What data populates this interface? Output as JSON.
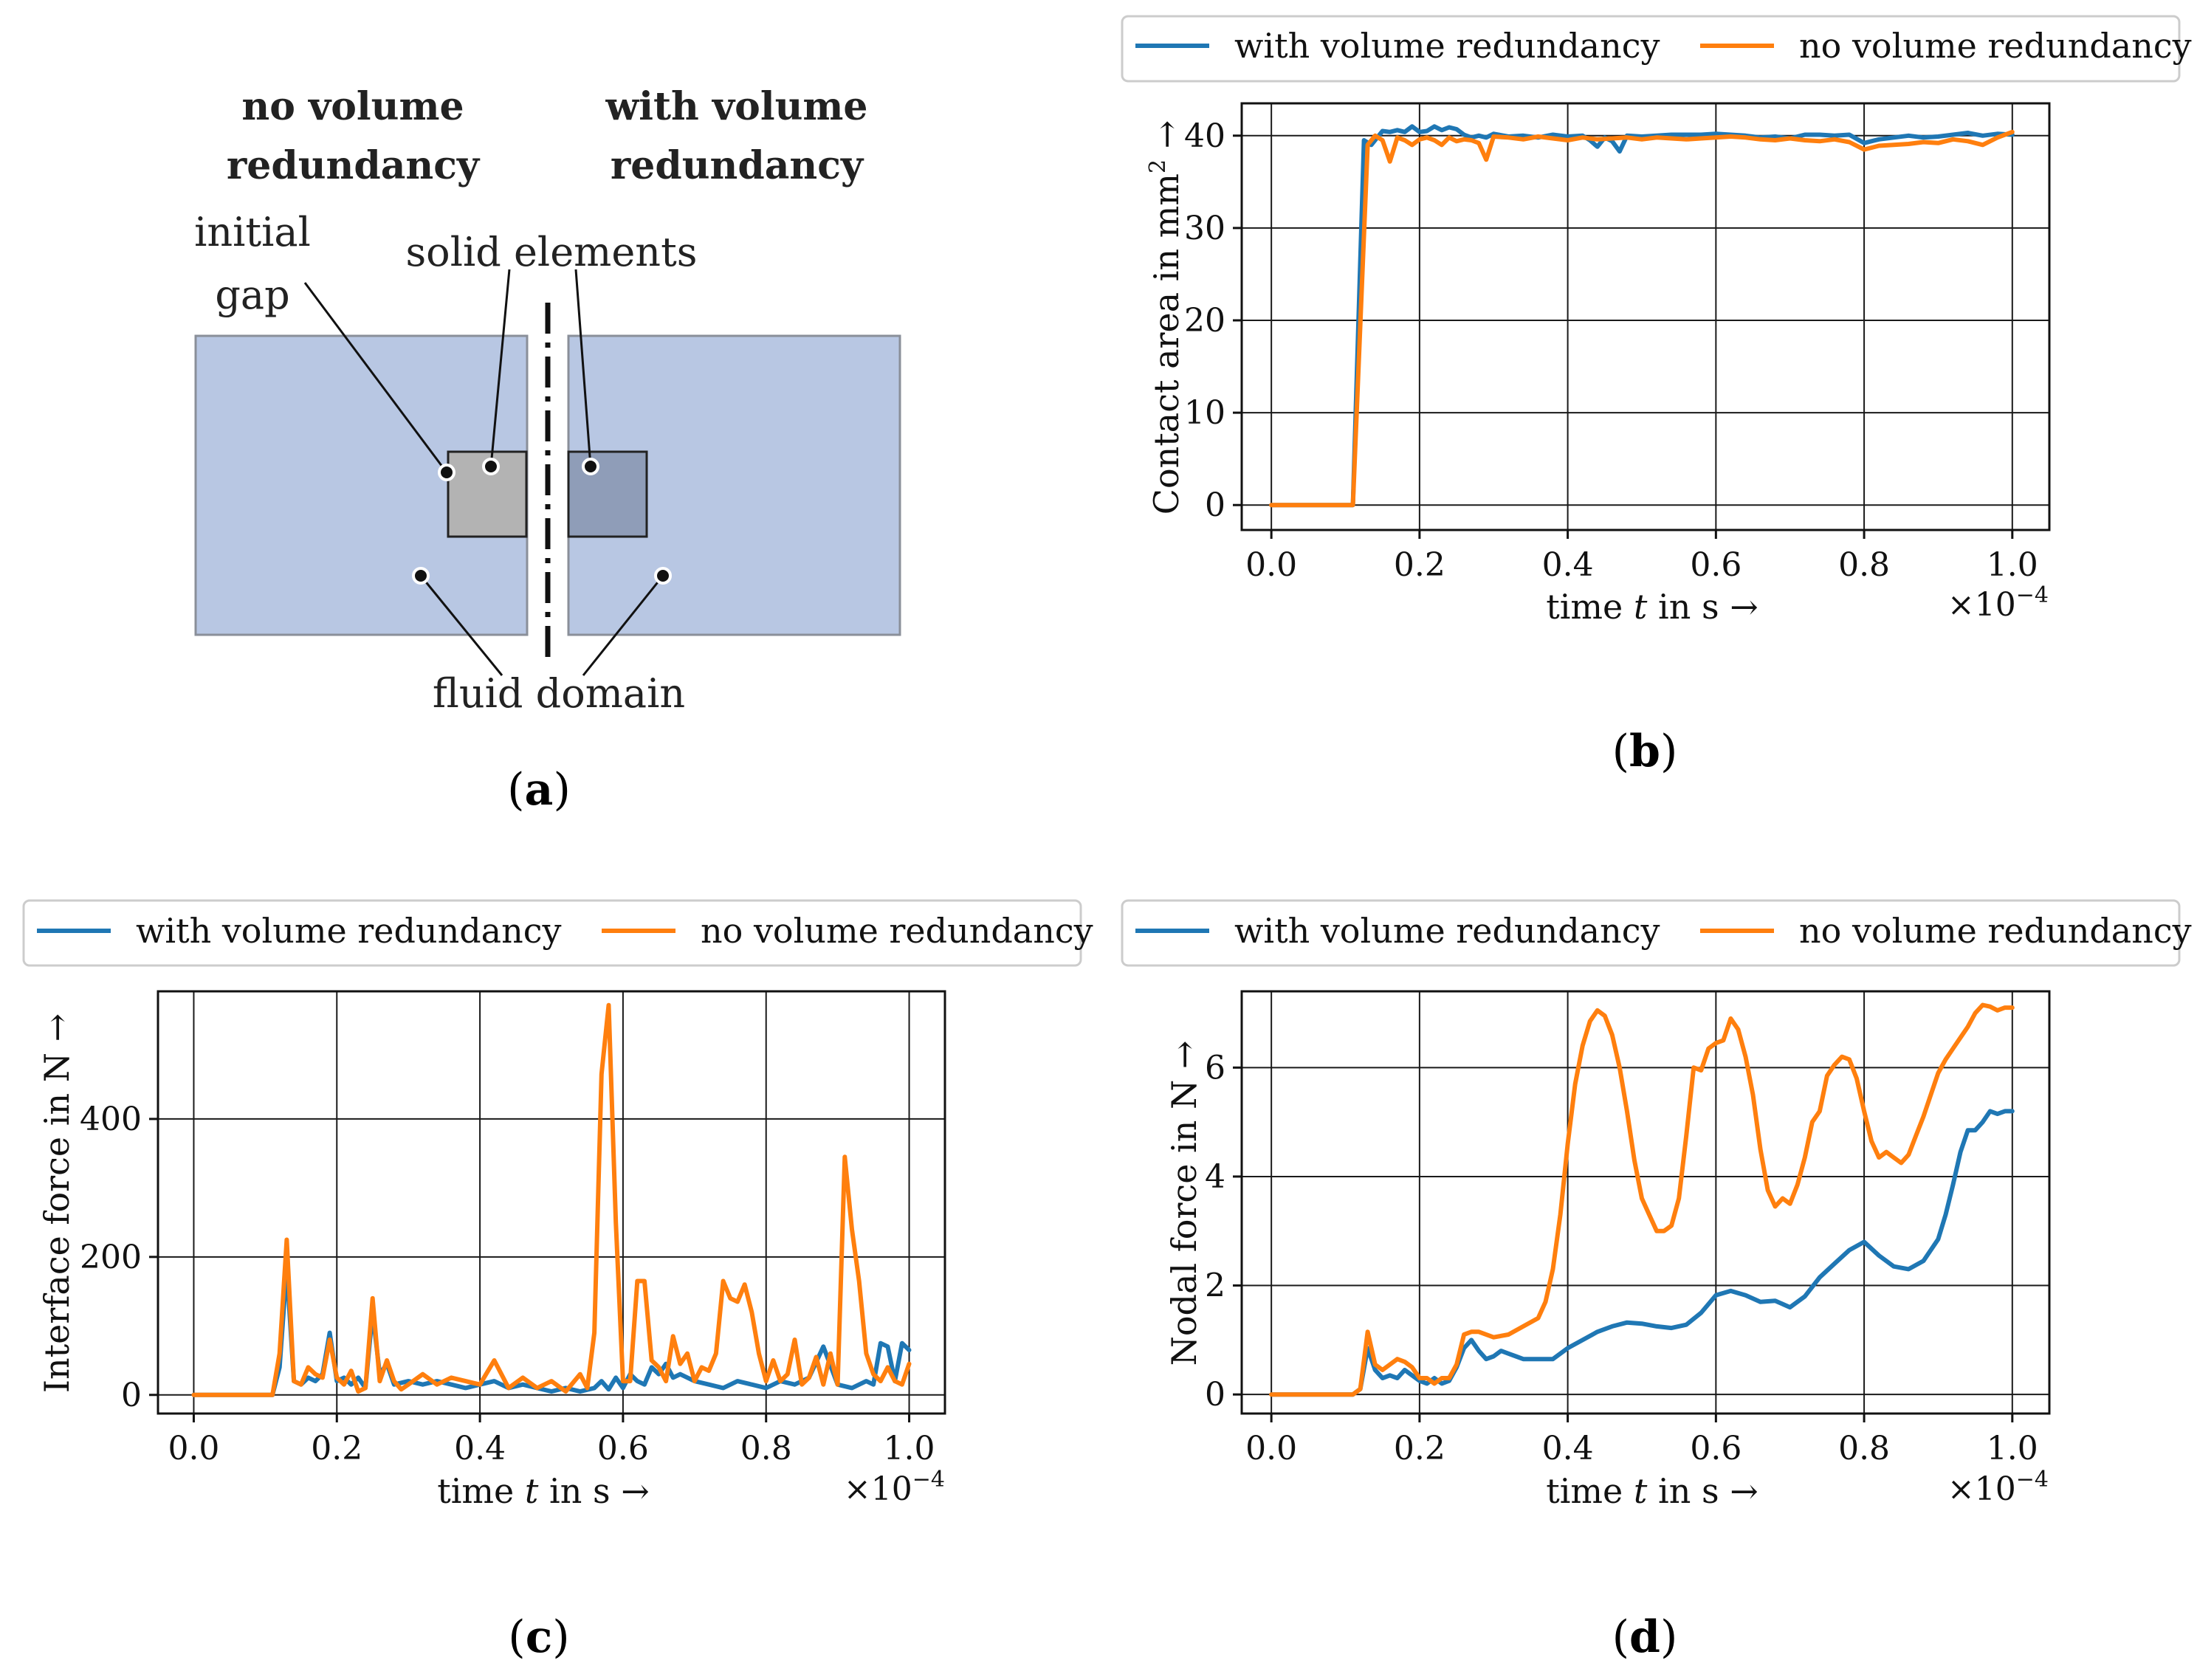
{
  "colors": {
    "with": "#1f77b4",
    "without": "#ff7f0e",
    "fluid_fill": "#b8c7e3",
    "fluid_stroke": "#8a8f99",
    "solid_left": "#b3b3b3",
    "solid_right": "#8f9db8",
    "grid": "#1a1a1a"
  },
  "panel_a": {
    "heading_left_line1": "no volume",
    "heading_left_line2": "redundancy",
    "heading_right_line1": "with volume",
    "heading_right_line2": "redundancy",
    "label_initial": "initial",
    "label_gap": "gap",
    "label_solid": "solid elements",
    "label_fluid": "fluid domain",
    "caption_open": "(",
    "caption_letter": "a",
    "caption_close": ")"
  },
  "chart_data": [
    {
      "id": "b",
      "type": "line",
      "caption": "b",
      "xlabel_prefix": "time ",
      "xlabel_var": "t",
      "xlabel_suffix": " in s →",
      "ylabel_pre": "Contact area in mm",
      "ylabel_sup": "2",
      "ylabel_post": " →",
      "x_multiplier_base": "×10",
      "x_multiplier_exp": "−4",
      "xlim": [
        -0.04,
        1.05
      ],
      "ylim": [
        -2.7,
        43.5
      ],
      "xticks": [
        0.0,
        0.2,
        0.4,
        0.6,
        0.8,
        1.0
      ],
      "xtick_labels": [
        "0.0",
        "0.2",
        "0.4",
        "0.6",
        "0.8",
        "1.0"
      ],
      "yticks": [
        0,
        10,
        20,
        30,
        40
      ],
      "ytick_labels": [
        "0",
        "10",
        "20",
        "30",
        "40"
      ],
      "grid": true,
      "legend": {
        "position": "top",
        "entries": [
          "with volume redundancy",
          "no volume redundancy"
        ]
      },
      "series": [
        {
          "name": "with volume redundancy",
          "color_key": "with",
          "x": [
            0.0,
            0.11,
            0.125,
            0.135,
            0.15,
            0.16,
            0.17,
            0.18,
            0.19,
            0.2,
            0.21,
            0.22,
            0.23,
            0.24,
            0.25,
            0.26,
            0.27,
            0.28,
            0.29,
            0.3,
            0.32,
            0.34,
            0.36,
            0.38,
            0.4,
            0.42,
            0.43,
            0.44,
            0.45,
            0.46,
            0.47,
            0.48,
            0.5,
            0.52,
            0.54,
            0.56,
            0.58,
            0.6,
            0.62,
            0.64,
            0.66,
            0.68,
            0.7,
            0.72,
            0.74,
            0.76,
            0.78,
            0.8,
            0.82,
            0.84,
            0.86,
            0.88,
            0.9,
            0.92,
            0.94,
            0.96,
            0.98,
            1.0
          ],
          "y": [
            0,
            0,
            39.5,
            39.0,
            40.5,
            40.4,
            40.6,
            40.4,
            41.0,
            40.4,
            40.5,
            41.0,
            40.6,
            40.9,
            40.7,
            40.1,
            39.8,
            40.0,
            39.8,
            40.2,
            39.9,
            40.0,
            39.8,
            40.1,
            39.9,
            40.0,
            39.5,
            38.8,
            39.8,
            39.4,
            38.3,
            40.0,
            39.9,
            40.0,
            40.1,
            40.1,
            40.1,
            40.2,
            40.1,
            40.0,
            39.8,
            39.9,
            39.7,
            40.1,
            40.1,
            40.0,
            40.1,
            39.2,
            39.6,
            39.8,
            40.0,
            39.8,
            39.9,
            40.1,
            40.3,
            40.0,
            40.2,
            40.1
          ]
        },
        {
          "name": "no volume redundancy",
          "color_key": "without",
          "x": [
            0.0,
            0.11,
            0.13,
            0.14,
            0.15,
            0.16,
            0.17,
            0.18,
            0.19,
            0.2,
            0.21,
            0.22,
            0.23,
            0.24,
            0.25,
            0.26,
            0.27,
            0.28,
            0.29,
            0.3,
            0.32,
            0.34,
            0.36,
            0.38,
            0.4,
            0.42,
            0.44,
            0.46,
            0.48,
            0.5,
            0.52,
            0.54,
            0.56,
            0.58,
            0.6,
            0.62,
            0.64,
            0.66,
            0.68,
            0.7,
            0.72,
            0.74,
            0.76,
            0.78,
            0.8,
            0.82,
            0.84,
            0.86,
            0.88,
            0.9,
            0.92,
            0.94,
            0.96,
            0.98,
            1.0
          ],
          "y": [
            0,
            0,
            39.0,
            40.0,
            39.5,
            37.2,
            39.8,
            39.5,
            39.0,
            39.6,
            39.8,
            39.5,
            39.0,
            39.8,
            39.4,
            39.6,
            39.5,
            39.2,
            37.4,
            39.9,
            39.8,
            39.6,
            39.9,
            39.7,
            39.5,
            39.8,
            39.6,
            39.7,
            39.8,
            39.6,
            39.8,
            39.7,
            39.6,
            39.7,
            39.8,
            39.9,
            39.8,
            39.6,
            39.5,
            39.7,
            39.5,
            39.4,
            39.6,
            39.3,
            38.5,
            38.9,
            39.0,
            39.1,
            39.3,
            39.2,
            39.6,
            39.4,
            39.0,
            39.8,
            40.4
          ]
        }
      ]
    },
    {
      "id": "c",
      "type": "line",
      "caption": "c",
      "xlabel_prefix": "time ",
      "xlabel_var": "t",
      "xlabel_suffix": " in s →",
      "ylabel_pre": "Interface force in N →",
      "ylabel_sup": "",
      "ylabel_post": "",
      "x_multiplier_base": "×10",
      "x_multiplier_exp": "−4",
      "xlim": [
        -0.05,
        1.05
      ],
      "ylim": [
        -27,
        585
      ],
      "xticks": [
        0.0,
        0.2,
        0.4,
        0.6,
        0.8,
        1.0
      ],
      "xtick_labels": [
        "0.0",
        "0.2",
        "0.4",
        "0.6",
        "0.8",
        "1.0"
      ],
      "yticks": [
        0,
        200,
        400
      ],
      "ytick_labels": [
        "0",
        "200",
        "400"
      ],
      "grid": true,
      "legend": {
        "position": "top",
        "entries": [
          "with volume redundancy",
          "no volume redundancy"
        ]
      },
      "series": [
        {
          "name": "with volume redundancy",
          "color_key": "with",
          "x": [
            0.0,
            0.11,
            0.12,
            0.13,
            0.14,
            0.15,
            0.16,
            0.17,
            0.18,
            0.19,
            0.2,
            0.21,
            0.22,
            0.23,
            0.24,
            0.25,
            0.26,
            0.27,
            0.28,
            0.3,
            0.32,
            0.34,
            0.36,
            0.38,
            0.4,
            0.42,
            0.44,
            0.46,
            0.48,
            0.5,
            0.52,
            0.54,
            0.56,
            0.57,
            0.58,
            0.59,
            0.6,
            0.61,
            0.62,
            0.63,
            0.64,
            0.65,
            0.66,
            0.67,
            0.68,
            0.7,
            0.72,
            0.74,
            0.76,
            0.78,
            0.8,
            0.82,
            0.84,
            0.86,
            0.88,
            0.9,
            0.92,
            0.94,
            0.95,
            0.96,
            0.97,
            0.98,
            0.99,
            1.0
          ],
          "y": [
            0,
            0,
            40,
            185,
            20,
            15,
            25,
            20,
            30,
            90,
            20,
            25,
            15,
            25,
            10,
            120,
            30,
            45,
            15,
            20,
            15,
            20,
            15,
            10,
            15,
            20,
            10,
            15,
            10,
            5,
            10,
            5,
            10,
            20,
            8,
            25,
            10,
            30,
            20,
            15,
            40,
            30,
            45,
            25,
            30,
            20,
            15,
            10,
            20,
            15,
            10,
            20,
            15,
            25,
            70,
            15,
            10,
            20,
            15,
            75,
            70,
            20,
            75,
            65
          ]
        },
        {
          "name": "no volume redundancy",
          "color_key": "without",
          "x": [
            0.0,
            0.11,
            0.12,
            0.13,
            0.14,
            0.15,
            0.16,
            0.17,
            0.18,
            0.19,
            0.2,
            0.21,
            0.22,
            0.23,
            0.24,
            0.25,
            0.26,
            0.27,
            0.28,
            0.29,
            0.3,
            0.32,
            0.34,
            0.36,
            0.38,
            0.4,
            0.42,
            0.44,
            0.46,
            0.48,
            0.5,
            0.52,
            0.54,
            0.55,
            0.56,
            0.57,
            0.58,
            0.59,
            0.6,
            0.61,
            0.62,
            0.63,
            0.64,
            0.65,
            0.66,
            0.67,
            0.68,
            0.69,
            0.7,
            0.71,
            0.72,
            0.73,
            0.74,
            0.75,
            0.76,
            0.77,
            0.78,
            0.79,
            0.8,
            0.81,
            0.82,
            0.83,
            0.84,
            0.85,
            0.86,
            0.87,
            0.88,
            0.89,
            0.9,
            0.91,
            0.92,
            0.93,
            0.94,
            0.95,
            0.96,
            0.97,
            0.98,
            0.99,
            1.0
          ],
          "y": [
            0,
            0,
            60,
            225,
            20,
            15,
            40,
            30,
            25,
            80,
            25,
            15,
            35,
            5,
            10,
            140,
            20,
            50,
            20,
            8,
            15,
            30,
            15,
            25,
            20,
            15,
            50,
            10,
            25,
            10,
            20,
            5,
            30,
            10,
            90,
            465,
            565,
            250,
            20,
            20,
            165,
            165,
            50,
            40,
            20,
            85,
            45,
            60,
            20,
            40,
            35,
            60,
            165,
            140,
            135,
            160,
            120,
            60,
            20,
            50,
            20,
            30,
            80,
            15,
            25,
            55,
            15,
            60,
            15,
            345,
            240,
            165,
            60,
            30,
            20,
            40,
            20,
            15,
            45
          ]
        }
      ]
    },
    {
      "id": "d",
      "type": "line",
      "caption": "d",
      "xlabel_prefix": "time ",
      "xlabel_var": "t",
      "xlabel_suffix": " in s  →",
      "ylabel_pre": "Nodal force in N  →",
      "ylabel_sup": "",
      "ylabel_post": "",
      "x_multiplier_base": "×10",
      "x_multiplier_exp": "−4",
      "xlim": [
        -0.04,
        1.05
      ],
      "ylim": [
        -0.35,
        7.4
      ],
      "xticks": [
        0.0,
        0.2,
        0.4,
        0.6,
        0.8,
        1.0
      ],
      "xtick_labels": [
        "0.0",
        "0.2",
        "0.4",
        "0.6",
        "0.8",
        "1.0"
      ],
      "yticks": [
        0,
        2,
        4,
        6
      ],
      "ytick_labels": [
        "0",
        "2",
        "4",
        "6"
      ],
      "grid": true,
      "legend": {
        "position": "top",
        "entries": [
          "with volume redundancy",
          "no volume redundancy"
        ]
      },
      "series": [
        {
          "name": "with volume redundancy",
          "color_key": "with",
          "x": [
            0.0,
            0.11,
            0.12,
            0.13,
            0.14,
            0.15,
            0.16,
            0.17,
            0.18,
            0.19,
            0.2,
            0.21,
            0.22,
            0.23,
            0.24,
            0.25,
            0.26,
            0.27,
            0.28,
            0.29,
            0.3,
            0.31,
            0.32,
            0.33,
            0.34,
            0.36,
            0.38,
            0.4,
            0.42,
            0.44,
            0.46,
            0.48,
            0.5,
            0.52,
            0.54,
            0.56,
            0.58,
            0.6,
            0.62,
            0.64,
            0.66,
            0.68,
            0.7,
            0.72,
            0.74,
            0.76,
            0.78,
            0.8,
            0.82,
            0.84,
            0.86,
            0.88,
            0.9,
            0.91,
            0.92,
            0.93,
            0.94,
            0.95,
            0.96,
            0.97,
            0.98,
            0.99,
            1.0
          ],
          "y": [
            0,
            0,
            0.1,
            0.85,
            0.45,
            0.3,
            0.35,
            0.3,
            0.45,
            0.35,
            0.25,
            0.2,
            0.3,
            0.2,
            0.25,
            0.5,
            0.85,
            1.0,
            0.8,
            0.65,
            0.7,
            0.8,
            0.75,
            0.7,
            0.65,
            0.65,
            0.65,
            0.85,
            1.0,
            1.15,
            1.25,
            1.32,
            1.3,
            1.25,
            1.22,
            1.28,
            1.5,
            1.82,
            1.9,
            1.82,
            1.7,
            1.72,
            1.6,
            1.8,
            2.15,
            2.4,
            2.65,
            2.8,
            2.55,
            2.35,
            2.3,
            2.45,
            2.85,
            3.3,
            3.85,
            4.45,
            4.85,
            4.85,
            5.0,
            5.2,
            5.15,
            5.2,
            5.2
          ]
        },
        {
          "name": "no volume redundancy",
          "color_key": "without",
          "x": [
            0.0,
            0.11,
            0.12,
            0.13,
            0.14,
            0.15,
            0.16,
            0.17,
            0.18,
            0.19,
            0.2,
            0.21,
            0.22,
            0.23,
            0.24,
            0.25,
            0.26,
            0.27,
            0.28,
            0.3,
            0.32,
            0.34,
            0.36,
            0.37,
            0.38,
            0.39,
            0.4,
            0.41,
            0.42,
            0.43,
            0.44,
            0.45,
            0.46,
            0.47,
            0.48,
            0.49,
            0.5,
            0.51,
            0.52,
            0.53,
            0.54,
            0.55,
            0.56,
            0.57,
            0.58,
            0.59,
            0.6,
            0.61,
            0.62,
            0.63,
            0.64,
            0.65,
            0.66,
            0.67,
            0.68,
            0.69,
            0.7,
            0.71,
            0.72,
            0.73,
            0.74,
            0.75,
            0.76,
            0.77,
            0.78,
            0.79,
            0.8,
            0.81,
            0.82,
            0.83,
            0.84,
            0.85,
            0.86,
            0.87,
            0.88,
            0.89,
            0.9,
            0.91,
            0.92,
            0.93,
            0.94,
            0.95,
            0.96,
            0.97,
            0.98,
            0.99,
            1.0
          ],
          "y": [
            0,
            0,
            0.1,
            1.15,
            0.55,
            0.45,
            0.55,
            0.65,
            0.6,
            0.5,
            0.3,
            0.3,
            0.2,
            0.3,
            0.3,
            0.55,
            1.1,
            1.15,
            1.15,
            1.05,
            1.1,
            1.25,
            1.4,
            1.7,
            2.3,
            3.3,
            4.6,
            5.7,
            6.4,
            6.85,
            7.05,
            6.95,
            6.6,
            6.0,
            5.2,
            4.3,
            3.6,
            3.3,
            3.0,
            3.0,
            3.1,
            3.6,
            4.75,
            6.0,
            5.95,
            6.35,
            6.45,
            6.5,
            6.9,
            6.7,
            6.2,
            5.5,
            4.5,
            3.75,
            3.45,
            3.6,
            3.5,
            3.85,
            4.35,
            5.0,
            5.2,
            5.85,
            6.05,
            6.2,
            6.15,
            5.8,
            5.2,
            4.65,
            4.35,
            4.45,
            4.35,
            4.25,
            4.4,
            4.75,
            5.1,
            5.5,
            5.9,
            6.15,
            6.35,
            6.55,
            6.75,
            7.0,
            7.15,
            7.12,
            7.05,
            7.1,
            7.1
          ]
        }
      ]
    }
  ]
}
